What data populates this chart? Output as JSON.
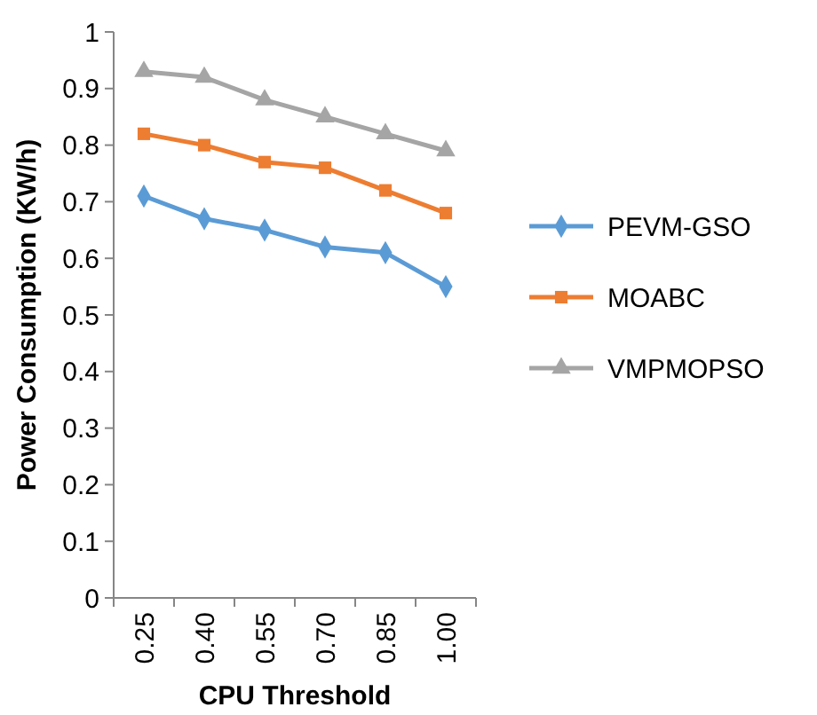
{
  "chart_data": {
    "type": "line",
    "xlabel": "CPU Threshold",
    "ylabel": "Power Consumption (KW/h)",
    "categories": [
      "0.25",
      "0.40",
      "0.55",
      "0.70",
      "0.85",
      "1.00"
    ],
    "series": [
      {
        "name": "PEVM-GSO",
        "color": "#5b9bd5",
        "marker": "diamond",
        "values": [
          0.71,
          0.67,
          0.65,
          0.62,
          0.61,
          0.55
        ]
      },
      {
        "name": "MOABC",
        "color": "#ed7d31",
        "marker": "square",
        "values": [
          0.82,
          0.8,
          0.77,
          0.76,
          0.72,
          0.68
        ]
      },
      {
        "name": "VMPMOPSO",
        "color": "#a5a5a5",
        "marker": "triangle",
        "values": [
          0.93,
          0.92,
          0.88,
          0.85,
          0.82,
          0.79
        ]
      }
    ],
    "ylim": [
      0,
      1
    ],
    "yticks": [
      0,
      0.1,
      0.2,
      0.3,
      0.4,
      0.5,
      0.6,
      0.7,
      0.8,
      0.9,
      1
    ],
    "grid": false,
    "legend": "right"
  }
}
